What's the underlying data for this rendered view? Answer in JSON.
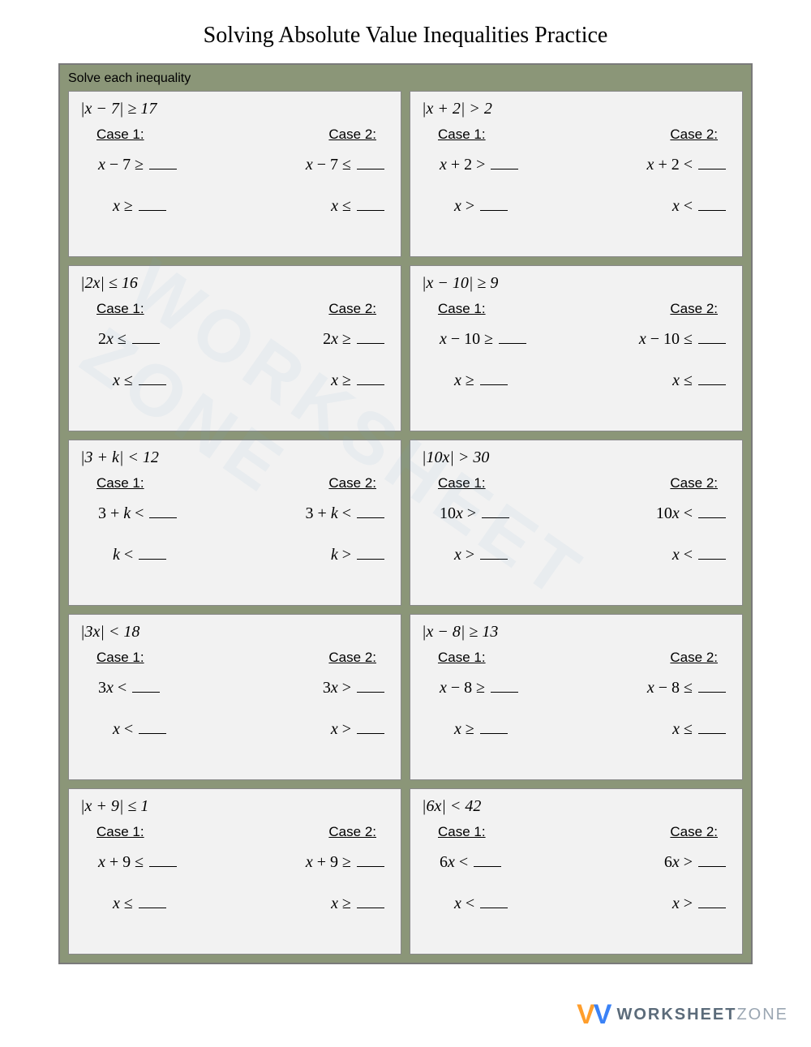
{
  "title": "Solving Absolute Value Inequalities Practice",
  "instruction": "Solve each inequality",
  "colors": {
    "frame_bg": "#8b9678",
    "frame_border": "#7a7a7a",
    "cell_bg": "#f2f2f2",
    "cell_border": "#888888",
    "page_bg": "#ffffff",
    "text": "#000000"
  },
  "case_labels": {
    "c1": "Case 1:",
    "c2": "Case 2:"
  },
  "problems": [
    {
      "head": "|x − 7| ≥ 17",
      "c1": {
        "l1": "x − 7 ≥",
        "l2": "x ≥"
      },
      "c2": {
        "l1": "x − 7 ≤",
        "l2": "x ≤"
      }
    },
    {
      "head": "|x + 2| > 2",
      "c1": {
        "l1": "x + 2 >",
        "l2": "x >"
      },
      "c2": {
        "l1": "x + 2 <",
        "l2": "x <"
      }
    },
    {
      "head": "|2x| ≤ 16",
      "c1": {
        "l1": "2x ≤",
        "l2": "x ≤"
      },
      "c2": {
        "l1": "2x ≥",
        "l2": "x ≥"
      }
    },
    {
      "head": "|x − 10| ≥ 9",
      "c1": {
        "l1": "x − 10 ≥",
        "l2": "x ≥"
      },
      "c2": {
        "l1": "x − 10 ≤",
        "l2": "x ≤"
      }
    },
    {
      "head": "|3 + k| < 12",
      "c1": {
        "l1": "3 + k <",
        "l2": "k <"
      },
      "c2": {
        "l1": "3 + k <",
        "l2": "k >"
      }
    },
    {
      "head": "|10x| > 30",
      "c1": {
        "l1": "10x >",
        "l2": "x >"
      },
      "c2": {
        "l1": "10x <",
        "l2": "x <"
      }
    },
    {
      "head": "|3x| < 18",
      "c1": {
        "l1": "3x <",
        "l2": "x <"
      },
      "c2": {
        "l1": "3x >",
        "l2": "x >"
      }
    },
    {
      "head": "|x − 8| ≥ 13",
      "c1": {
        "l1": "x − 8 ≥",
        "l2": "x ≥"
      },
      "c2": {
        "l1": "x − 8 ≤",
        "l2": "x ≤"
      }
    },
    {
      "head": "|x + 9| ≤ 1",
      "c1": {
        "l1": "x + 9 ≤",
        "l2": "x ≤"
      },
      "c2": {
        "l1": "x + 9 ≥",
        "l2": "x ≥"
      }
    },
    {
      "head": "|6x| < 42",
      "c1": {
        "l1": "6x <",
        "l2": "x <"
      },
      "c2": {
        "l1": "6x >",
        "l2": "x >"
      }
    }
  ],
  "watermark": {
    "brand_main": "WORKSHEET",
    "brand_sub": "ZONE",
    "diag": "WORKSHEET ZONE"
  }
}
